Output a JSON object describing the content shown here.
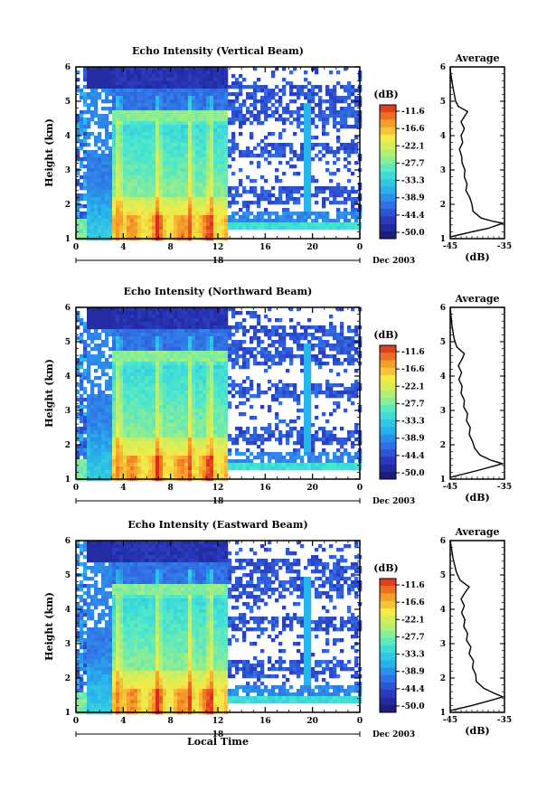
{
  "figure": {
    "date_label": "Dec 2003",
    "day_label": "18",
    "xlabel": "Local Time",
    "ylabel": "Height (km)",
    "colorbar_unit": "(dB)",
    "avg_title": "Average",
    "avg_xlabel": "(dB)"
  },
  "chart_data": [
    {
      "type": "heatmap",
      "title": "Echo Intensity (Vertical Beam)",
      "ylabel": "Height (km)",
      "x_ticks": [
        "0",
        "4",
        "8",
        "12",
        "16",
        "20",
        "0"
      ],
      "xlim": [
        0,
        24
      ],
      "y_ticks": [
        "1",
        "2",
        "3",
        "4",
        "5",
        "6"
      ],
      "ylim": [
        1,
        6
      ],
      "colorbar_ticks": [
        "-11.6",
        "-16.6",
        "-22.1",
        "-27.7",
        "-33.3",
        "-38.9",
        "-44.4",
        "-50.0"
      ],
      "colorbar_range": [
        -52,
        -9
      ],
      "features": {
        "convective_until_h": 12.8,
        "bright_band_km": 4.6,
        "bright_band_upper_km": 4.9,
        "low_layer_km": 1.4
      }
    },
    {
      "type": "line",
      "title": "Average",
      "xlabel": "(dB)",
      "x_ticks": [
        "-45",
        "-35"
      ],
      "xlim": [
        -45,
        -35
      ],
      "ylim": [
        1,
        6
      ],
      "y_ticks": [
        "1",
        "2",
        "3",
        "4",
        "5",
        "6"
      ],
      "profile": [
        [
          -45.0,
          1.05
        ],
        [
          -41.0,
          1.2
        ],
        [
          -38.0,
          1.3
        ],
        [
          -36.2,
          1.4
        ],
        [
          -35.3,
          1.45
        ],
        [
          -37.0,
          1.5
        ],
        [
          -39.3,
          1.6
        ],
        [
          -40.8,
          1.8
        ],
        [
          -41.0,
          2.0
        ],
        [
          -41.4,
          2.2
        ],
        [
          -42.1,
          2.4
        ],
        [
          -41.9,
          2.6
        ],
        [
          -42.4,
          2.8
        ],
        [
          -42.3,
          3.0
        ],
        [
          -42.8,
          3.2
        ],
        [
          -42.9,
          3.4
        ],
        [
          -43.3,
          3.6
        ],
        [
          -42.7,
          3.8
        ],
        [
          -43.0,
          4.0
        ],
        [
          -42.4,
          4.2
        ],
        [
          -43.0,
          4.4
        ],
        [
          -42.2,
          4.6
        ],
        [
          -41.8,
          4.7
        ],
        [
          -43.5,
          4.85
        ],
        [
          -44.0,
          5.0
        ],
        [
          -44.5,
          5.4
        ],
        [
          -44.9,
          5.8
        ],
        [
          -45.0,
          6.0
        ]
      ]
    },
    {
      "type": "heatmap",
      "title": "Echo Intensity (Northward Beam)",
      "ylabel": "Height (km)",
      "x_ticks": [
        "0",
        "4",
        "8",
        "12",
        "16",
        "20",
        "0"
      ],
      "xlim": [
        0,
        24
      ],
      "y_ticks": [
        "1",
        "2",
        "3",
        "4",
        "5",
        "6"
      ],
      "ylim": [
        1,
        6
      ],
      "colorbar_ticks": [
        "-11.6",
        "-16.6",
        "-22.1",
        "-27.7",
        "-33.3",
        "-38.9",
        "-44.4",
        "-50.0"
      ],
      "colorbar_range": [
        -52,
        -9
      ],
      "features": {
        "convective_until_h": 12.8,
        "bright_band_km": 4.6,
        "bright_band_upper_km": 4.9,
        "low_layer_km": 1.4
      }
    },
    {
      "type": "line",
      "title": "Average",
      "xlabel": "(dB)",
      "x_ticks": [
        "-45",
        "-35"
      ],
      "xlim": [
        -45,
        -35
      ],
      "ylim": [
        1,
        6
      ],
      "y_ticks": [
        "1",
        "2",
        "3",
        "4",
        "5",
        "6"
      ],
      "profile": [
        [
          -45.0,
          1.05
        ],
        [
          -40.0,
          1.25
        ],
        [
          -36.5,
          1.4
        ],
        [
          -35.4,
          1.45
        ],
        [
          -37.5,
          1.55
        ],
        [
          -39.5,
          1.7
        ],
        [
          -40.5,
          1.9
        ],
        [
          -40.9,
          2.1
        ],
        [
          -41.5,
          2.3
        ],
        [
          -41.3,
          2.5
        ],
        [
          -42.0,
          2.7
        ],
        [
          -41.8,
          2.9
        ],
        [
          -42.5,
          3.1
        ],
        [
          -42.4,
          3.3
        ],
        [
          -43.0,
          3.5
        ],
        [
          -42.8,
          3.7
        ],
        [
          -43.4,
          3.9
        ],
        [
          -42.9,
          4.1
        ],
        [
          -43.5,
          4.3
        ],
        [
          -42.8,
          4.5
        ],
        [
          -42.4,
          4.65
        ],
        [
          -43.8,
          4.85
        ],
        [
          -44.3,
          5.1
        ],
        [
          -44.7,
          5.5
        ],
        [
          -45.0,
          6.0
        ]
      ]
    },
    {
      "type": "heatmap",
      "title": "Echo Intensity (Eastward Beam)",
      "ylabel": "Height (km)",
      "xlabel": "Local Time",
      "x_ticks": [
        "0",
        "4",
        "8",
        "12",
        "16",
        "20",
        "0"
      ],
      "xlim": [
        0,
        24
      ],
      "y_ticks": [
        "1",
        "2",
        "3",
        "4",
        "5",
        "6"
      ],
      "ylim": [
        1,
        6
      ],
      "colorbar_ticks": [
        "-11.6",
        "-16.6",
        "-22.1",
        "-27.7",
        "-33.3",
        "-38.9",
        "-44.4",
        "-50.0"
      ],
      "colorbar_range": [
        -52,
        -9
      ],
      "features": {
        "convective_until_h": 12.8,
        "bright_band_km": 4.6,
        "bright_band_upper_km": 4.9,
        "low_layer_km": 1.4
      }
    },
    {
      "type": "line",
      "title": "Average",
      "xlabel": "(dB)",
      "x_ticks": [
        "-45",
        "-35"
      ],
      "xlim": [
        -45,
        -35
      ],
      "ylim": [
        1,
        6
      ],
      "y_ticks": [
        "1",
        "2",
        "3",
        "4",
        "5",
        "6"
      ],
      "profile": [
        [
          -45.0,
          1.05
        ],
        [
          -41.0,
          1.2
        ],
        [
          -37.5,
          1.35
        ],
        [
          -35.3,
          1.45
        ],
        [
          -36.8,
          1.55
        ],
        [
          -38.8,
          1.7
        ],
        [
          -40.2,
          1.9
        ],
        [
          -40.3,
          2.1
        ],
        [
          -40.9,
          2.3
        ],
        [
          -40.7,
          2.5
        ],
        [
          -41.5,
          2.7
        ],
        [
          -41.2,
          2.9
        ],
        [
          -42.0,
          3.1
        ],
        [
          -41.8,
          3.3
        ],
        [
          -42.5,
          3.5
        ],
        [
          -42.3,
          3.7
        ],
        [
          -42.9,
          3.9
        ],
        [
          -42.4,
          4.1
        ],
        [
          -43.0,
          4.3
        ],
        [
          -42.2,
          4.5
        ],
        [
          -41.5,
          4.65
        ],
        [
          -43.2,
          4.85
        ],
        [
          -43.9,
          5.1
        ],
        [
          -44.5,
          5.5
        ],
        [
          -45.0,
          6.0
        ]
      ]
    }
  ]
}
